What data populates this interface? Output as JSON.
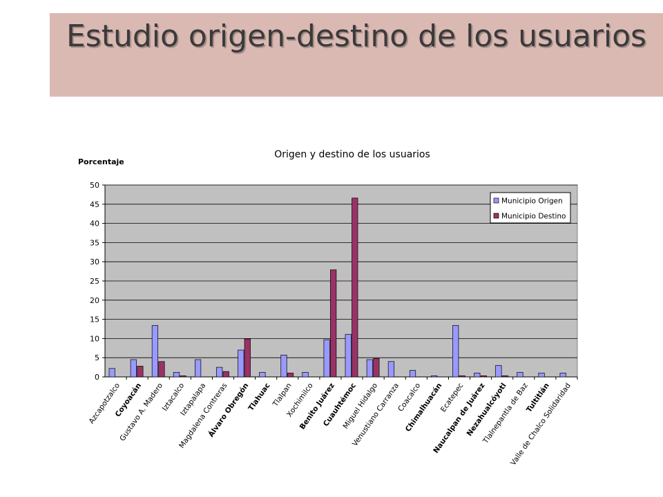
{
  "slide": {
    "title": "Estudio origen-destino de los usuarios"
  },
  "colors": {
    "banner": "#dbb9b3",
    "plot_bg": "#c0c0c0",
    "origen": "#9999ff",
    "destino": "#993366"
  },
  "chart_data": {
    "type": "bar",
    "title": "Origen y destino de los usuarios",
    "ylabel": "Porcentaje",
    "xlabel": "",
    "ylim": [
      0,
      50
    ],
    "yticks": [
      0,
      5,
      10,
      15,
      20,
      25,
      30,
      35,
      40,
      45,
      50
    ],
    "grid": true,
    "legend_position": "top-right",
    "categories": [
      "Azcapotzalco",
      "Coyoacán",
      "Gustavo A. Madero",
      "Iztacalco",
      "Iztapalapa",
      "Magdalena Contreras",
      "Álvaro Obregón",
      "Tlahuac",
      "Tlalpan",
      "Xochimilco",
      "Benito Juárez",
      "Cuauhtémoc",
      "Miguel Hidalgo",
      "Venustiano Carranza",
      "Coacalco",
      "Chimalhuacán",
      "Ecatepec",
      "Naucalpan de Juárez",
      "Nezahualcóyotl",
      "Tlalnepantla de Baz",
      "Tultitlán",
      "Valle de Chalco Solidaridad"
    ],
    "bold_categories": [
      "Coyoacán",
      "Álvaro Obregón",
      "Tlahuac",
      "Benito Juárez",
      "Cuauhtémoc",
      "Chimalhuacán",
      "Naucalpan de Juárez",
      "Nezahualcóyotl",
      "Tultitlán"
    ],
    "series": [
      {
        "name": "Municipio Origen",
        "values": [
          2.2,
          4.5,
          13.4,
          1.2,
          4.5,
          2.5,
          7.0,
          1.2,
          5.7,
          1.2,
          9.7,
          11.1,
          4.5,
          4.0,
          1.7,
          0.3,
          13.4,
          1.0,
          3.0,
          1.2,
          1.0,
          1.0
        ]
      },
      {
        "name": "Municipio Destino",
        "values": [
          0,
          2.8,
          4.0,
          0.3,
          0,
          1.4,
          9.9,
          0,
          1.0,
          0,
          27.9,
          46.6,
          4.8,
          0,
          0,
          0,
          0.3,
          0.3,
          0.3,
          0,
          0,
          0
        ]
      }
    ]
  }
}
